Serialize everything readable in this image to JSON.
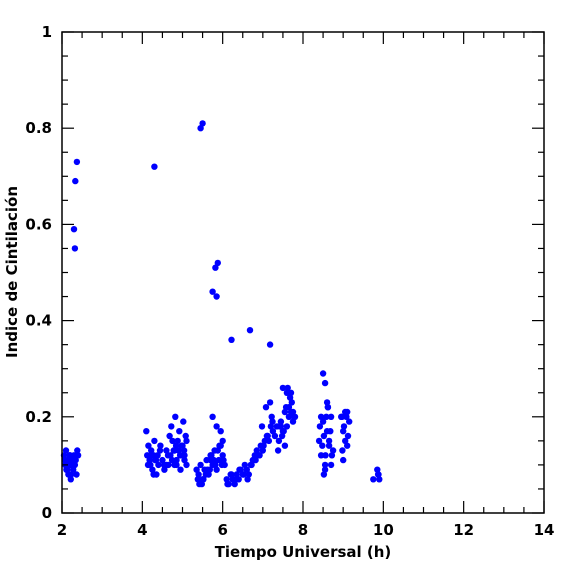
{
  "chart_data": {
    "type": "scatter",
    "title": "",
    "xlabel": "Tiempo Universal (h)",
    "ylabel": "Indice de Cintilación",
    "xlim": [
      2,
      14
    ],
    "ylim": [
      0,
      1
    ],
    "x_major_ticks": [
      2,
      4,
      6,
      8,
      10,
      12,
      14
    ],
    "x_tick_labels": [
      "2",
      "4",
      "6",
      "8",
      "10",
      "12",
      "14"
    ],
    "y_major_ticks": [
      0,
      0.2,
      0.4,
      0.6,
      0.8,
      1
    ],
    "y_tick_labels": [
      "0",
      "0.2",
      "0.4",
      "0.6",
      "0.8",
      "1"
    ],
    "x_minor_step": 0.5,
    "y_minor_step": 0.05,
    "grid": false,
    "marker_color": "#0000ff",
    "series": [
      {
        "x": [
          2.05,
          2.08,
          2.1,
          2.12,
          2.14,
          2.16,
          2.18,
          2.2,
          2.22,
          2.24,
          2.26,
          2.28,
          2.3,
          2.32,
          2.34,
          2.36,
          2.38,
          2.4,
          2.07,
          2.11,
          2.15,
          2.19,
          2.23,
          2.27,
          2.31,
          2.35,
          2.13,
          2.21,
          2.29,
          2.3,
          2.32,
          2.33,
          2.37,
          2.31,
          4.1,
          4.12,
          4.15,
          4.18,
          4.2,
          4.22,
          4.25,
          4.28,
          4.3,
          4.32,
          4.35,
          4.38,
          4.4,
          4.45,
          4.5,
          4.55,
          4.6,
          4.65,
          4.7,
          4.75,
          4.8,
          4.85,
          4.9,
          4.95,
          5.0,
          5.05,
          5.1,
          4.14,
          4.24,
          4.34,
          4.44,
          4.54,
          4.64,
          4.74,
          4.84,
          4.94,
          5.04,
          4.68,
          4.72,
          4.78,
          4.82,
          4.88,
          4.92,
          4.98,
          5.02,
          5.08,
          4.6,
          4.3,
          4.85,
          4.95,
          5.05,
          5.1,
          4.8,
          4.28,
          5.35,
          5.4,
          5.45,
          5.5,
          5.55,
          5.6,
          5.65,
          5.7,
          5.75,
          5.8,
          5.85,
          5.9,
          5.95,
          6.0,
          6.05,
          5.38,
          5.48,
          5.58,
          5.68,
          5.78,
          5.88,
          5.98,
          5.42,
          5.52,
          5.62,
          5.72,
          5.82,
          5.92,
          6.02,
          5.75,
          5.85,
          5.95,
          6.0,
          5.7,
          5.45,
          5.5,
          5.75,
          5.85,
          5.82,
          5.88,
          6.1,
          6.15,
          6.2,
          6.25,
          6.3,
          6.35,
          6.4,
          6.45,
          6.5,
          6.55,
          6.6,
          6.65,
          6.7,
          6.75,
          6.8,
          6.85,
          6.9,
          6.95,
          7.0,
          7.05,
          7.1,
          7.15,
          7.2,
          7.25,
          6.12,
          6.22,
          6.32,
          6.42,
          6.52,
          6.62,
          6.72,
          6.82,
          6.92,
          7.02,
          7.12,
          7.22,
          6.98,
          7.08,
          7.18,
          7.24,
          6.22,
          6.68,
          7.18,
          7.3,
          7.35,
          7.4,
          7.45,
          7.5,
          7.55,
          7.6,
          7.65,
          7.7,
          7.75,
          7.8,
          7.38,
          7.48,
          7.58,
          7.68,
          7.78,
          7.42,
          7.52,
          7.62,
          7.72,
          7.55,
          7.6,
          7.65,
          7.7,
          7.75,
          7.5,
          7.45,
          8.4,
          8.45,
          8.5,
          8.55,
          8.6,
          8.65,
          8.7,
          8.75,
          8.42,
          8.52,
          8.62,
          8.72,
          8.48,
          8.58,
          8.68,
          8.5,
          8.55,
          8.6,
          8.65,
          8.7,
          8.52,
          8.56,
          8.62,
          8.45,
          8.55,
          8.95,
          9.0,
          9.05,
          9.1,
          9.15,
          8.98,
          9.08,
          9.02,
          9.12,
          9.0,
          9.05,
          9.1,
          8.97,
          9.75,
          9.85,
          9.88,
          9.9,
          9.87
        ],
        "y": [
          0.12,
          0.1,
          0.13,
          0.09,
          0.11,
          0.08,
          0.1,
          0.12,
          0.07,
          0.11,
          0.1,
          0.09,
          0.12,
          0.1,
          0.11,
          0.08,
          0.13,
          0.12,
          0.11,
          0.09,
          0.1,
          0.12,
          0.08,
          0.11,
          0.1,
          0.12,
          0.09,
          0.1,
          0.11,
          0.59,
          0.55,
          0.69,
          0.73,
          0.1,
          0.17,
          0.12,
          0.14,
          0.11,
          0.1,
          0.13,
          0.09,
          0.12,
          0.15,
          0.11,
          0.08,
          0.12,
          0.1,
          0.14,
          0.11,
          0.09,
          0.13,
          0.1,
          0.12,
          0.15,
          0.1,
          0.11,
          0.13,
          0.12,
          0.14,
          0.11,
          0.15,
          0.1,
          0.12,
          0.11,
          0.13,
          0.1,
          0.12,
          0.11,
          0.14,
          0.12,
          0.13,
          0.16,
          0.18,
          0.13,
          0.2,
          0.15,
          0.17,
          0.14,
          0.19,
          0.16,
          0.1,
          0.72,
          0.1,
          0.09,
          0.12,
          0.1,
          0.13,
          0.08,
          0.09,
          0.08,
          0.1,
          0.07,
          0.09,
          0.11,
          0.08,
          0.12,
          0.1,
          0.13,
          0.09,
          0.11,
          0.14,
          0.12,
          0.1,
          0.07,
          0.06,
          0.08,
          0.09,
          0.11,
          0.13,
          0.1,
          0.06,
          0.07,
          0.09,
          0.12,
          0.1,
          0.14,
          0.11,
          0.2,
          0.18,
          0.17,
          0.15,
          0.11,
          0.8,
          0.81,
          0.46,
          0.45,
          0.51,
          0.52,
          0.07,
          0.06,
          0.08,
          0.07,
          0.06,
          0.08,
          0.07,
          0.09,
          0.08,
          0.1,
          0.09,
          0.08,
          0.1,
          0.11,
          0.12,
          0.13,
          0.12,
          0.14,
          0.13,
          0.15,
          0.16,
          0.15,
          0.18,
          0.17,
          0.06,
          0.08,
          0.07,
          0.09,
          0.08,
          0.07,
          0.1,
          0.11,
          0.12,
          0.14,
          0.16,
          0.2,
          0.18,
          0.22,
          0.23,
          0.19,
          0.36,
          0.38,
          0.35,
          0.16,
          0.18,
          0.15,
          0.19,
          0.17,
          0.14,
          0.18,
          0.2,
          0.21,
          0.19,
          0.2,
          0.13,
          0.16,
          0.22,
          0.24,
          0.2,
          0.18,
          0.17,
          0.26,
          0.23,
          0.21,
          0.25,
          0.22,
          0.25,
          0.21,
          0.26,
          0.18,
          0.15,
          0.12,
          0.19,
          0.1,
          0.17,
          0.14,
          0.2,
          0.13,
          0.18,
          0.16,
          0.22,
          0.12,
          0.14,
          0.2,
          0.17,
          0.29,
          0.27,
          0.23,
          0.15,
          0.1,
          0.08,
          0.12,
          0.22,
          0.2,
          0.09,
          0.2,
          0.17,
          0.15,
          0.21,
          0.19,
          0.13,
          0.2,
          0.18,
          0.16,
          0.11,
          0.21,
          0.14,
          0.2,
          0.07,
          0.09,
          0.08,
          0.07,
          0.08
        ]
      }
    ]
  }
}
